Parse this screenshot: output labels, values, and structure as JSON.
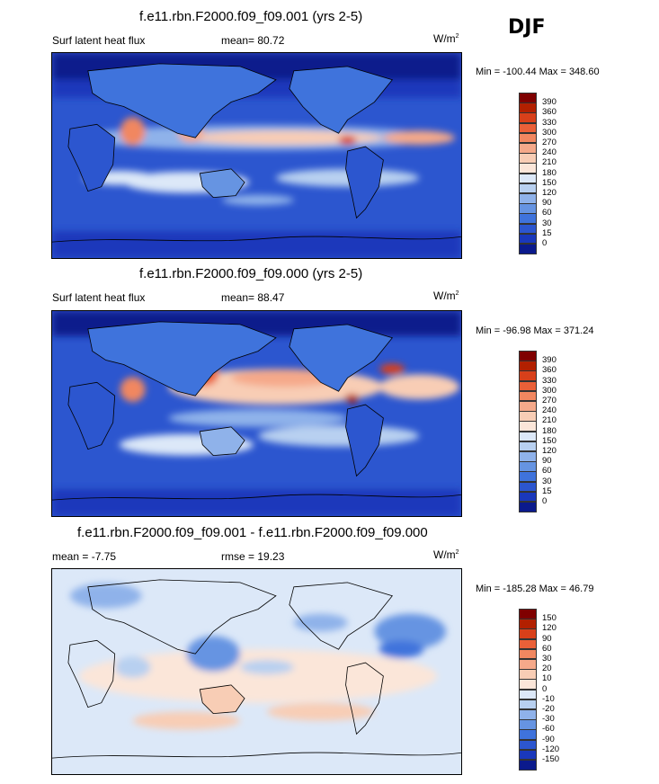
{
  "season": "DJF",
  "panels": [
    {
      "title": "f.e11.rbn.F2000.f09_f09.001 (yrs 2-5)",
      "left_label": "Surf latent heat flux",
      "mean_label": "mean=  80.72",
      "units": "W/m",
      "units_sup": "2",
      "minmax": "Min = -100.44 Max = 348.60",
      "colorbar": {
        "labels": [
          "390",
          "360",
          "330",
          "300",
          "270",
          "240",
          "210",
          "180",
          "150",
          "120",
          "90",
          "60",
          "30",
          "15",
          "0"
        ],
        "colors": [
          "#7f0000",
          "#b22000",
          "#d8401a",
          "#ea6038",
          "#f18760",
          "#f5a98a",
          "#f8cdb5",
          "#fbe6d9",
          "#dce8f8",
          "#b8d0f0",
          "#8fb2ea",
          "#6694e2",
          "#3f73dc",
          "#2c56cf",
          "#1a38bb",
          "#0b1a8c"
        ]
      }
    },
    {
      "title": "f.e11.rbn.F2000.f09_f09.000 (yrs 2-5)",
      "left_label": "Surf latent heat flux",
      "mean_label": "mean=  88.47",
      "units": "W/m",
      "units_sup": "2",
      "minmax": "Min = -96.98 Max = 371.24",
      "colorbar": {
        "labels": [
          "390",
          "360",
          "330",
          "300",
          "270",
          "240",
          "210",
          "180",
          "150",
          "120",
          "90",
          "60",
          "30",
          "15",
          "0"
        ],
        "colors": [
          "#7f0000",
          "#b22000",
          "#d8401a",
          "#ea6038",
          "#f18760",
          "#f5a98a",
          "#f8cdb5",
          "#fbe6d9",
          "#dce8f8",
          "#b8d0f0",
          "#8fb2ea",
          "#6694e2",
          "#3f73dc",
          "#2c56cf",
          "#1a38bb",
          "#0b1a8c"
        ]
      }
    },
    {
      "title": "f.e11.rbn.F2000.f09_f09.001 - f.e11.rbn.F2000.f09_f09.000",
      "left_label": "mean =  -7.75",
      "mean_label": "rmse =  19.23",
      "units": "W/m",
      "units_sup": "2",
      "minmax": "Min = -185.28 Max =  46.79",
      "colorbar": {
        "labels": [
          "150",
          "120",
          "90",
          "60",
          "30",
          "20",
          "10",
          "0",
          "-10",
          "-20",
          "-30",
          "-60",
          "-90",
          "-120",
          "-150"
        ],
        "colors": [
          "#7f0000",
          "#b22000",
          "#d8401a",
          "#ea6038",
          "#f18760",
          "#f5a98a",
          "#f8cdb5",
          "#fbe6d9",
          "#dce8f8",
          "#b8d0f0",
          "#8fb2ea",
          "#6694e2",
          "#3f73dc",
          "#2c56cf",
          "#1a38bb",
          "#0b1a8c"
        ]
      }
    }
  ]
}
